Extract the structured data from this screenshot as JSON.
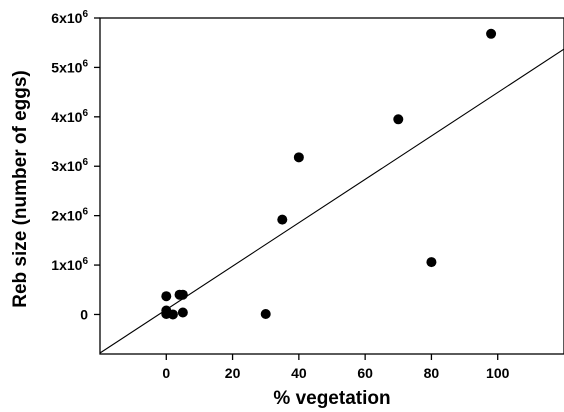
{
  "chart_data": {
    "type": "scatter",
    "xlabel": "% vegetation",
    "ylabel": "Reb size (number of eggs)",
    "xlim": [
      -20,
      120
    ],
    "ylim": [
      -800000,
      6000000
    ],
    "x_ticks": [
      {
        "value": 0,
        "label": "0"
      },
      {
        "value": 20,
        "label": "20"
      },
      {
        "value": 40,
        "label": "40"
      },
      {
        "value": 60,
        "label": "60"
      },
      {
        "value": 80,
        "label": "80"
      },
      {
        "value": 100,
        "label": "100"
      }
    ],
    "y_ticks": [
      {
        "value": 0,
        "base": "0",
        "exp": ""
      },
      {
        "value": 1000000,
        "base": "1x10",
        "exp": "6"
      },
      {
        "value": 2000000,
        "base": "2x10",
        "exp": "6"
      },
      {
        "value": 3000000,
        "base": "3x10",
        "exp": "6"
      },
      {
        "value": 4000000,
        "base": "4x10",
        "exp": "6"
      },
      {
        "value": 5000000,
        "base": "5x10",
        "exp": "6"
      },
      {
        "value": 6000000,
        "base": "6x10",
        "exp": "6"
      }
    ],
    "points": [
      {
        "x": 0,
        "y": 370000
      },
      {
        "x": 0,
        "y": 80000
      },
      {
        "x": 0,
        "y": 10000
      },
      {
        "x": 2,
        "y": 0
      },
      {
        "x": 4,
        "y": 400000
      },
      {
        "x": 5,
        "y": 400000
      },
      {
        "x": 5,
        "y": 40000
      },
      {
        "x": 30,
        "y": 10000
      },
      {
        "x": 35,
        "y": 1920000
      },
      {
        "x": 40,
        "y": 3180000
      },
      {
        "x": 70,
        "y": 3950000
      },
      {
        "x": 80,
        "y": 1060000
      },
      {
        "x": 98,
        "y": 5680000
      }
    ],
    "regression_line": {
      "x": [
        -20,
        120
      ],
      "y": [
        -780000,
        5370000
      ]
    },
    "grid": false,
    "marker_color": "#000000",
    "line_color": "#000000"
  }
}
